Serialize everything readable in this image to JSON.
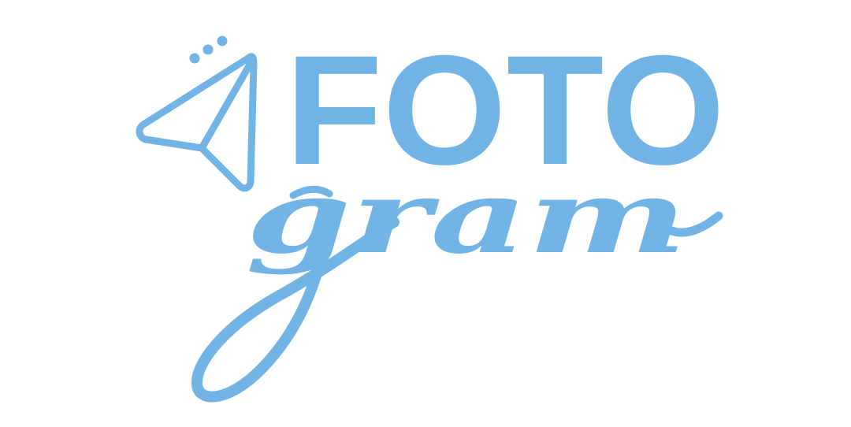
{
  "logo": {
    "brand_top": "FOTO",
    "brand_bottom": "gram",
    "icon": "paper-plane-icon",
    "color": "#72b4e6"
  }
}
